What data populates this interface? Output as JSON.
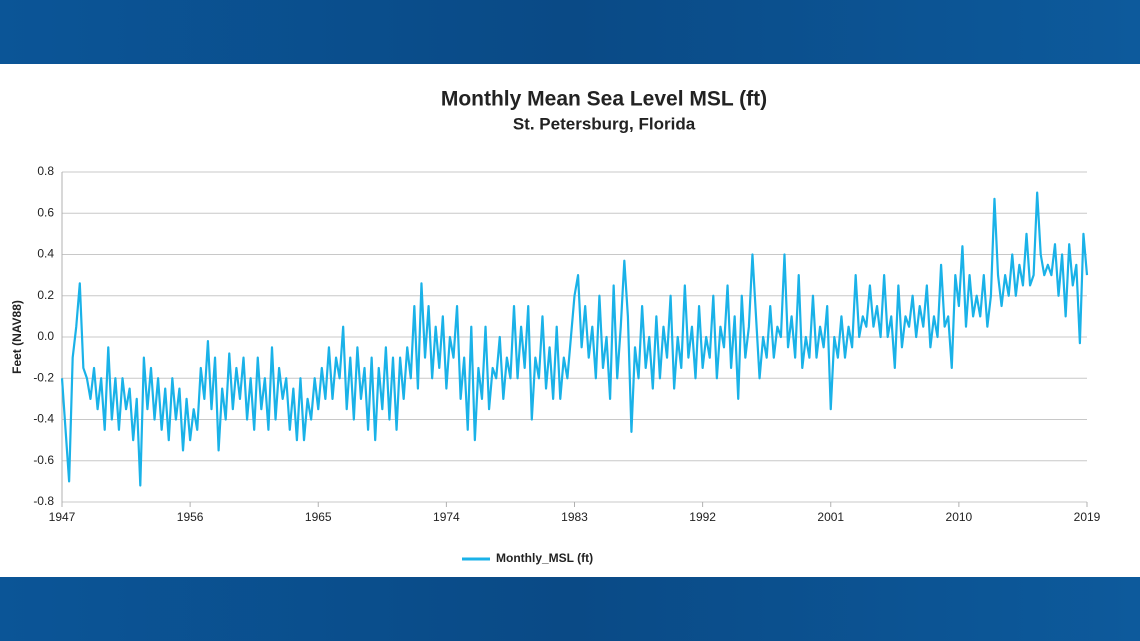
{
  "chart_data": {
    "type": "line",
    "title": "Monthly Mean Sea Level MSL (ft)",
    "subtitle": "St. Petersburg, Florida",
    "y_label": "Feet (NAV88)",
    "x": [
      1947,
      1947.25,
      1947.5,
      1947.75,
      1948,
      1948.25,
      1948.5,
      1948.75,
      1949,
      1949.25,
      1949.5,
      1949.75,
      1950,
      1950.25,
      1950.5,
      1950.75,
      1951,
      1951.25,
      1951.5,
      1951.75,
      1952,
      1952.25,
      1952.5,
      1952.75,
      1953,
      1953.25,
      1953.5,
      1953.75,
      1954,
      1954.25,
      1954.5,
      1954.75,
      1955,
      1955.25,
      1955.5,
      1955.75,
      1956,
      1956.25,
      1956.5,
      1956.75,
      1957,
      1957.25,
      1957.5,
      1957.75,
      1958,
      1958.25,
      1958.5,
      1958.75,
      1959,
      1959.25,
      1959.5,
      1959.75,
      1960,
      1960.25,
      1960.5,
      1960.75,
      1961,
      1961.25,
      1961.5,
      1961.75,
      1962,
      1962.25,
      1962.5,
      1962.75,
      1963,
      1963.25,
      1963.5,
      1963.75,
      1964,
      1964.25,
      1964.5,
      1964.75,
      1965,
      1965.25,
      1965.5,
      1965.75,
      1966,
      1966.25,
      1966.5,
      1966.75,
      1967,
      1967.25,
      1967.5,
      1967.75,
      1968,
      1968.25,
      1968.5,
      1968.75,
      1969,
      1969.25,
      1969.5,
      1969.75,
      1970,
      1970.25,
      1970.5,
      1970.75,
      1971,
      1971.25,
      1971.5,
      1971.75,
      1972,
      1972.25,
      1972.5,
      1972.75,
      1973,
      1973.25,
      1973.5,
      1973.75,
      1974,
      1974.25,
      1974.5,
      1974.75,
      1975,
      1975.25,
      1975.5,
      1975.75,
      1976,
      1976.25,
      1976.5,
      1976.75,
      1977,
      1977.25,
      1977.5,
      1977.75,
      1978,
      1978.25,
      1978.5,
      1978.75,
      1979,
      1979.25,
      1979.5,
      1979.75,
      1980,
      1980.25,
      1980.5,
      1980.75,
      1981,
      1981.25,
      1981.5,
      1981.75,
      1982,
      1982.25,
      1982.5,
      1982.75,
      1983,
      1983.25,
      1983.5,
      1983.75,
      1984,
      1984.25,
      1984.5,
      1984.75,
      1985,
      1985.25,
      1985.5,
      1985.75,
      1986,
      1986.25,
      1986.5,
      1986.75,
      1987,
      1987.25,
      1987.5,
      1987.75,
      1988,
      1988.25,
      1988.5,
      1988.75,
      1989,
      1989.25,
      1989.5,
      1989.75,
      1990,
      1990.25,
      1990.5,
      1990.75,
      1991,
      1991.25,
      1991.5,
      1991.75,
      1992,
      1992.25,
      1992.5,
      1992.75,
      1993,
      1993.25,
      1993.5,
      1993.75,
      1994,
      1994.25,
      1994.5,
      1994.75,
      1995,
      1995.25,
      1995.5,
      1995.75,
      1996,
      1996.25,
      1996.5,
      1996.75,
      1997,
      1997.25,
      1997.5,
      1997.75,
      1998,
      1998.25,
      1998.5,
      1998.75,
      1999,
      1999.25,
      1999.5,
      1999.75,
      2000,
      2000.25,
      2000.5,
      2000.75,
      2001,
      2001.25,
      2001.5,
      2001.75,
      2002,
      2002.25,
      2002.5,
      2002.75,
      2003,
      2003.25,
      2003.5,
      2003.75,
      2004,
      2004.25,
      2004.5,
      2004.75,
      2005,
      2005.25,
      2005.5,
      2005.75,
      2006,
      2006.25,
      2006.5,
      2006.75,
      2007,
      2007.25,
      2007.5,
      2007.75,
      2008,
      2008.25,
      2008.5,
      2008.75,
      2009,
      2009.25,
      2009.5,
      2009.75,
      2010,
      2010.25,
      2010.5,
      2010.75,
      2011,
      2011.25,
      2011.5,
      2011.75,
      2012,
      2012.25,
      2012.5,
      2012.75,
      2013,
      2013.25,
      2013.5,
      2013.75,
      2014,
      2014.25,
      2014.5,
      2014.75,
      2015,
      2015.25,
      2015.5,
      2015.75,
      2016,
      2016.25,
      2016.5,
      2016.75,
      2017,
      2017.25,
      2017.5,
      2017.75,
      2018,
      2018.25,
      2018.5,
      2018.75,
      2019
    ],
    "series": [
      {
        "name": "Monthly_MSL (ft)",
        "color": "#1ab2e8",
        "values": [
          -0.2,
          -0.45,
          -0.7,
          -0.1,
          0.05,
          0.26,
          -0.15,
          -0.2,
          -0.3,
          -0.15,
          -0.35,
          -0.2,
          -0.45,
          -0.05,
          -0.4,
          -0.2,
          -0.45,
          -0.2,
          -0.35,
          -0.25,
          -0.5,
          -0.3,
          -0.72,
          -0.1,
          -0.35,
          -0.15,
          -0.4,
          -0.2,
          -0.45,
          -0.25,
          -0.5,
          -0.2,
          -0.4,
          -0.25,
          -0.55,
          -0.3,
          -0.5,
          -0.35,
          -0.45,
          -0.15,
          -0.3,
          -0.02,
          -0.35,
          -0.1,
          -0.55,
          -0.25,
          -0.4,
          -0.08,
          -0.35,
          -0.15,
          -0.3,
          -0.1,
          -0.4,
          -0.2,
          -0.45,
          -0.1,
          -0.35,
          -0.2,
          -0.45,
          -0.05,
          -0.4,
          -0.15,
          -0.3,
          -0.2,
          -0.45,
          -0.25,
          -0.5,
          -0.2,
          -0.5,
          -0.3,
          -0.4,
          -0.2,
          -0.35,
          -0.15,
          -0.3,
          -0.05,
          -0.3,
          -0.1,
          -0.2,
          0.05,
          -0.35,
          -0.1,
          -0.4,
          -0.05,
          -0.3,
          -0.15,
          -0.45,
          -0.1,
          -0.5,
          -0.15,
          -0.35,
          -0.05,
          -0.4,
          -0.1,
          -0.45,
          -0.1,
          -0.3,
          -0.05,
          -0.2,
          0.15,
          -0.25,
          0.26,
          -0.1,
          0.15,
          -0.2,
          0.05,
          -0.15,
          0.1,
          -0.25,
          0.0,
          -0.1,
          0.15,
          -0.3,
          -0.1,
          -0.45,
          0.05,
          -0.5,
          -0.15,
          -0.3,
          0.05,
          -0.35,
          -0.15,
          -0.2,
          0.0,
          -0.3,
          -0.1,
          -0.2,
          0.15,
          -0.2,
          0.05,
          -0.15,
          0.15,
          -0.4,
          -0.1,
          -0.2,
          0.1,
          -0.25,
          -0.05,
          -0.3,
          0.05,
          -0.3,
          -0.1,
          -0.2,
          0.0,
          0.2,
          0.3,
          -0.05,
          0.15,
          -0.1,
          0.05,
          -0.2,
          0.2,
          -0.15,
          0.0,
          -0.3,
          0.25,
          -0.2,
          0.05,
          0.37,
          0.1,
          -0.46,
          -0.05,
          -0.2,
          0.15,
          -0.15,
          0.0,
          -0.25,
          0.1,
          -0.2,
          0.05,
          -0.1,
          0.2,
          -0.25,
          0.0,
          -0.15,
          0.25,
          -0.1,
          0.05,
          -0.2,
          0.15,
          -0.15,
          0.0,
          -0.1,
          0.2,
          -0.2,
          0.05,
          -0.05,
          0.25,
          -0.15,
          0.1,
          -0.3,
          0.2,
          -0.1,
          0.05,
          0.4,
          0.1,
          -0.2,
          0.0,
          -0.1,
          0.15,
          -0.1,
          0.05,
          0.0,
          0.4,
          -0.05,
          0.1,
          -0.1,
          0.3,
          -0.15,
          0.0,
          -0.1,
          0.2,
          -0.1,
          0.05,
          -0.05,
          0.15,
          -0.35,
          0.0,
          -0.1,
          0.1,
          -0.1,
          0.05,
          -0.05,
          0.3,
          0.0,
          0.1,
          0.05,
          0.25,
          0.05,
          0.15,
          0.0,
          0.3,
          0.0,
          0.1,
          -0.15,
          0.25,
          -0.05,
          0.1,
          0.05,
          0.2,
          0.0,
          0.15,
          0.05,
          0.25,
          -0.05,
          0.1,
          0.0,
          0.35,
          0.05,
          0.1,
          -0.15,
          0.3,
          0.15,
          0.44,
          0.05,
          0.3,
          0.1,
          0.2,
          0.1,
          0.3,
          0.05,
          0.2,
          0.67,
          0.3,
          0.15,
          0.3,
          0.2,
          0.4,
          0.2,
          0.35,
          0.25,
          0.5,
          0.25,
          0.3,
          0.7,
          0.4,
          0.3,
          0.35,
          0.3,
          0.45,
          0.2,
          0.4,
          0.1,
          0.45,
          0.25,
          0.35,
          -0.03,
          0.5,
          0.3
        ]
      }
    ],
    "xlim": [
      1947,
      2019
    ],
    "xticks": [
      1947,
      1956,
      1965,
      1974,
      1983,
      1992,
      2001,
      2010,
      2019
    ],
    "ylim": [
      -0.8,
      0.8
    ],
    "yticks": [
      -0.8,
      -0.6,
      -0.4,
      -0.2,
      {
        "value": 0,
        "label": "0.0"
      },
      0.2,
      0.4,
      0.6,
      0.8
    ],
    "grid": true,
    "legend": "bottom"
  }
}
